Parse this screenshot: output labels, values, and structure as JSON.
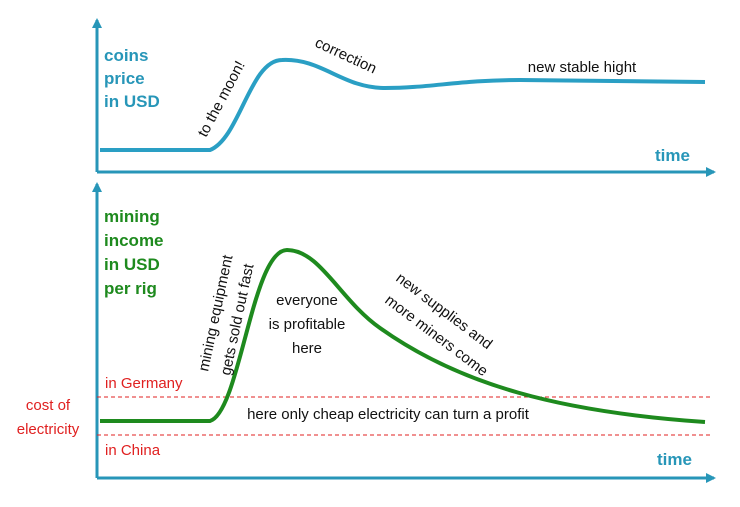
{
  "top_panel": {
    "y_label": [
      "coins",
      "price",
      "in USD"
    ],
    "x_label": "time",
    "annotations": {
      "rise": "to the moon!",
      "dip": "correction",
      "plateau": "new stable hight"
    }
  },
  "bottom_panel": {
    "y_label": [
      "mining",
      "income",
      "in USD",
      "per rig"
    ],
    "x_label": "time",
    "annotations": {
      "sold_out": [
        "mining equipment",
        "gets sold out fast"
      ],
      "profitable": [
        "everyone",
        "is profitable",
        "here"
      ],
      "supplies": [
        "new supplies and",
        "more miners come"
      ]
    },
    "cost_label": [
      "cost of",
      "electricity"
    ],
    "levels": [
      "in Germany",
      "in China"
    ],
    "band_note": "here only cheap electricity can turn a profit"
  }
}
